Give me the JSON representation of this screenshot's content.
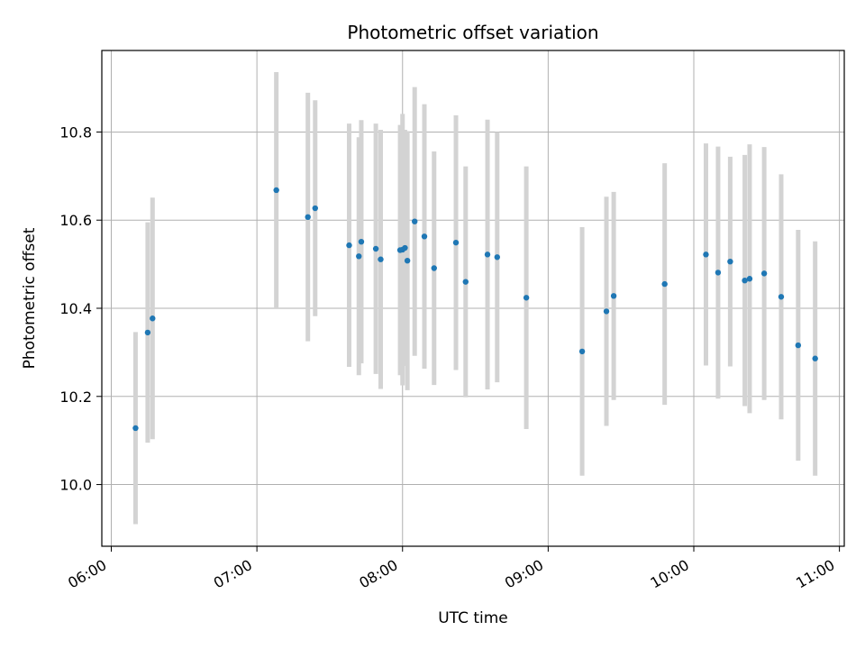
{
  "chart_data": {
    "type": "scatter",
    "title": "Photometric offset variation",
    "xlabel": "UTC time",
    "ylabel": "Photometric offset",
    "x_ticks": [
      "06:00",
      "07:00",
      "08:00",
      "09:00",
      "10:00",
      "11:00"
    ],
    "x_tick_hours": [
      6,
      7,
      8,
      9,
      10,
      11
    ],
    "xlim_hours": [
      5.935,
      11.0333
    ],
    "y_ticks": [
      "10.0",
      "10.2",
      "10.4",
      "10.6",
      "10.8"
    ],
    "y_tick_values": [
      10.0,
      10.2,
      10.4,
      10.6,
      10.8
    ],
    "ylim": [
      9.86,
      10.985
    ],
    "grid": true,
    "colors": {
      "point": "#1f77b4",
      "errorbar": "#d3d3d3",
      "grid": "#b0b0b0"
    },
    "points": [
      {
        "t": "06:10",
        "y": 10.128,
        "err": 0.218
      },
      {
        "t": "06:15",
        "y": 10.345,
        "err": 0.25
      },
      {
        "t": "06:17",
        "y": 10.377,
        "err": 0.274
      },
      {
        "t": "07:08",
        "y": 10.668,
        "err": 0.268
      },
      {
        "t": "07:21",
        "y": 10.607,
        "err": 0.282
      },
      {
        "t": "07:24",
        "y": 10.627,
        "err": 0.245
      },
      {
        "t": "07:38",
        "y": 10.543,
        "err": 0.276
      },
      {
        "t": "07:42",
        "y": 10.518,
        "err": 0.27
      },
      {
        "t": "07:43",
        "y": 10.551,
        "err": 0.276
      },
      {
        "t": "07:49",
        "y": 10.535,
        "err": 0.284
      },
      {
        "t": "07:51",
        "y": 10.511,
        "err": 0.294
      },
      {
        "t": "07:59",
        "y": 10.532,
        "err": 0.284
      },
      {
        "t": "08:00",
        "y": 10.533,
        "err": 0.308
      },
      {
        "t": "08:01",
        "y": 10.537,
        "err": 0.268
      },
      {
        "t": "08:02",
        "y": 10.508,
        "err": 0.294
      },
      {
        "t": "08:05",
        "y": 10.597,
        "err": 0.305
      },
      {
        "t": "08:09",
        "y": 10.563,
        "err": 0.3
      },
      {
        "t": "08:13",
        "y": 10.491,
        "err": 0.265
      },
      {
        "t": "08:22",
        "y": 10.549,
        "err": 0.289
      },
      {
        "t": "08:26",
        "y": 10.46,
        "err": 0.262
      },
      {
        "t": "08:35",
        "y": 10.522,
        "err": 0.306
      },
      {
        "t": "08:39",
        "y": 10.516,
        "err": 0.284
      },
      {
        "t": "08:51",
        "y": 10.424,
        "err": 0.298
      },
      {
        "t": "09:14",
        "y": 10.302,
        "err": 0.282
      },
      {
        "t": "09:24",
        "y": 10.393,
        "err": 0.26
      },
      {
        "t": "09:27",
        "y": 10.428,
        "err": 0.236
      },
      {
        "t": "09:48",
        "y": 10.455,
        "err": 0.274
      },
      {
        "t": "10:05",
        "y": 10.522,
        "err": 0.252
      },
      {
        "t": "10:10",
        "y": 10.481,
        "err": 0.286
      },
      {
        "t": "10:15",
        "y": 10.506,
        "err": 0.238
      },
      {
        "t": "10:21",
        "y": 10.463,
        "err": 0.285
      },
      {
        "t": "10:23",
        "y": 10.467,
        "err": 0.305
      },
      {
        "t": "10:29",
        "y": 10.479,
        "err": 0.287
      },
      {
        "t": "10:36",
        "y": 10.426,
        "err": 0.278
      },
      {
        "t": "10:43",
        "y": 10.316,
        "err": 0.262
      },
      {
        "t": "10:50",
        "y": 10.286,
        "err": 0.266
      }
    ]
  }
}
